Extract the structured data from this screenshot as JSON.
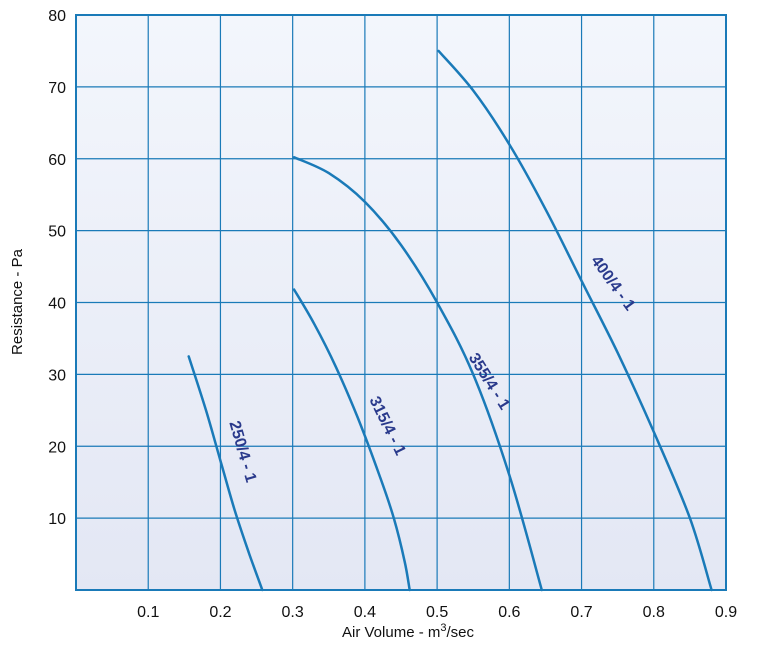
{
  "colors": {
    "plot_bg_top": "#f3f6fc",
    "plot_bg_bottom": "#e3e7f4",
    "grid": "#1a7ab8",
    "curve": "#1a7ab8",
    "curve_label": "#2a3a8c",
    "text": "#111111"
  },
  "chart_data": {
    "type": "line",
    "title": "",
    "xlabel_main": "Air Volume - m",
    "xlabel_sup": "3",
    "xlabel_tail": "/sec",
    "ylabel": "Resistance - Pa",
    "xlim": [
      0,
      0.9
    ],
    "ylim": [
      0,
      80
    ],
    "x_ticks": [
      "0.1",
      "0.2",
      "0.3",
      "0.4",
      "0.5",
      "0.6",
      "0.7",
      "0.8",
      "0.9"
    ],
    "y_ticks": [
      "10",
      "20",
      "30",
      "40",
      "50",
      "60",
      "70",
      "80"
    ],
    "grid": true,
    "series": [
      {
        "name": "250/4 - 1",
        "x": [
          0.156,
          0.18,
          0.2,
          0.22,
          0.24,
          0.258
        ],
        "y": [
          32.5,
          25,
          18,
          11,
          5,
          0
        ]
      },
      {
        "name": "315/4 - 1",
        "x": [
          0.302,
          0.33,
          0.36,
          0.39,
          0.42,
          0.44,
          0.455,
          0.462
        ],
        "y": [
          41.8,
          37,
          31,
          24,
          16,
          10,
          4,
          0
        ]
      },
      {
        "name": "355/4 - 1",
        "x": [
          0.302,
          0.35,
          0.4,
          0.45,
          0.5,
          0.55,
          0.6,
          0.645
        ],
        "y": [
          60.2,
          58,
          54,
          48,
          40,
          30,
          16,
          0
        ]
      },
      {
        "name": "400/4 - 1",
        "x": [
          0.502,
          0.55,
          0.6,
          0.65,
          0.7,
          0.75,
          0.8,
          0.85,
          0.88
        ],
        "y": [
          75,
          69.5,
          62,
          53,
          43,
          33,
          22,
          10,
          0
        ]
      }
    ]
  }
}
